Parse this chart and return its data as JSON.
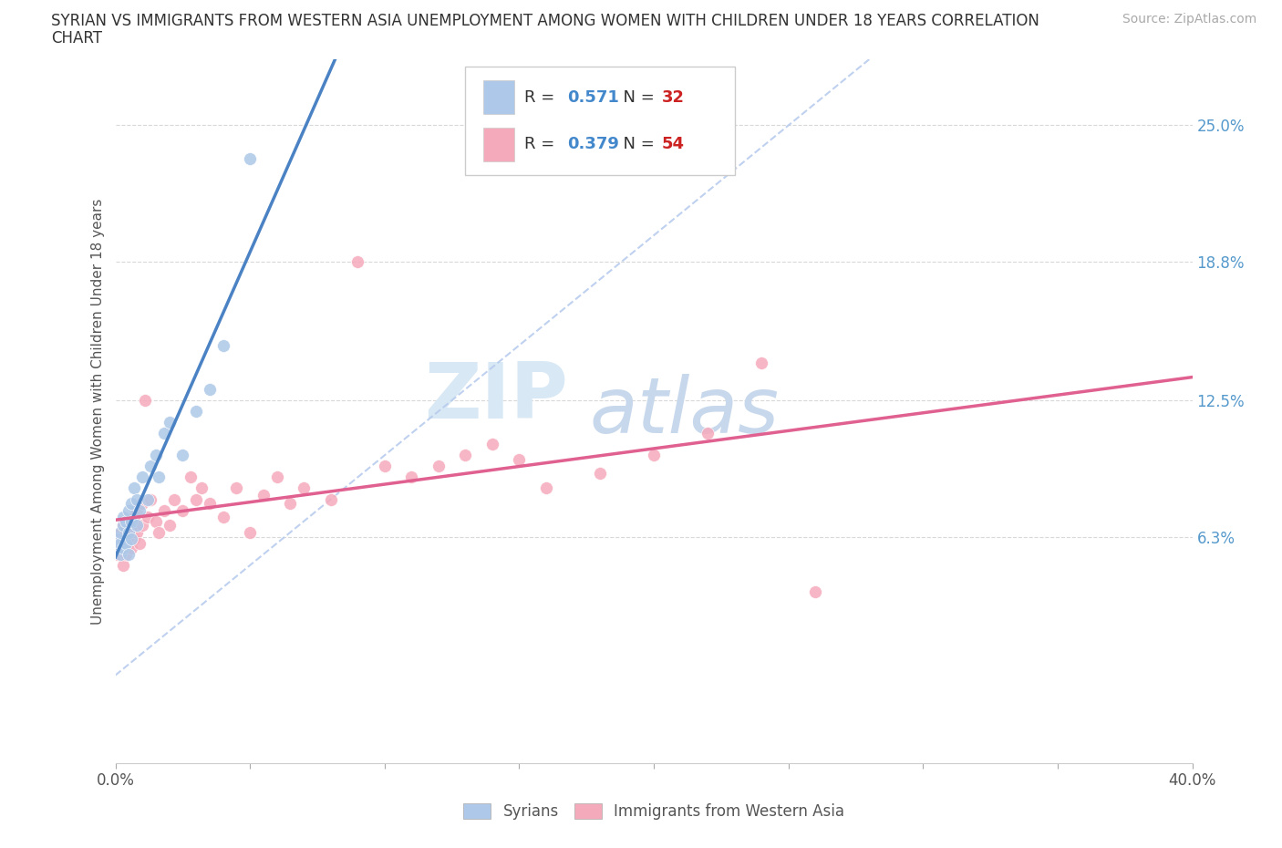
{
  "title_line1": "SYRIAN VS IMMIGRANTS FROM WESTERN ASIA UNEMPLOYMENT AMONG WOMEN WITH CHILDREN UNDER 18 YEARS CORRELATION",
  "title_line2": "CHART",
  "source": "Source: ZipAtlas.com",
  "ylabel": "Unemployment Among Women with Children Under 18 years",
  "xlim": [
    0.0,
    0.4
  ],
  "ylim": [
    -0.04,
    0.28
  ],
  "xticks": [
    0.0,
    0.05,
    0.1,
    0.15,
    0.2,
    0.25,
    0.3,
    0.35,
    0.4
  ],
  "ytick_right": [
    0.063,
    0.125,
    0.188,
    0.25
  ],
  "ytick_right_labels": [
    "6.3%",
    "12.5%",
    "18.8%",
    "25.0%"
  ],
  "R_syrian": 0.571,
  "N_syrian": 32,
  "R_western": 0.379,
  "N_western": 54,
  "syrian_color": "#adc8e8",
  "western_color": "#f5aabb",
  "syrian_line_color": "#4a82c4",
  "western_line_color": "#e06090",
  "diagonal_color": "#b8ccee",
  "grid_color": "#d8d8d8",
  "background_color": "#ffffff",
  "syrian_x": [
    0.001,
    0.001,
    0.002,
    0.002,
    0.002,
    0.003,
    0.003,
    0.003,
    0.004,
    0.004,
    0.005,
    0.005,
    0.005,
    0.006,
    0.006,
    0.006,
    0.007,
    0.008,
    0.008,
    0.009,
    0.01,
    0.012,
    0.013,
    0.015,
    0.016,
    0.018,
    0.02,
    0.025,
    0.03,
    0.035,
    0.04,
    0.05
  ],
  "syrian_y": [
    0.058,
    0.062,
    0.055,
    0.06,
    0.065,
    0.058,
    0.068,
    0.072,
    0.06,
    0.07,
    0.055,
    0.065,
    0.075,
    0.062,
    0.07,
    0.078,
    0.085,
    0.068,
    0.08,
    0.075,
    0.09,
    0.08,
    0.095,
    0.1,
    0.09,
    0.11,
    0.115,
    0.1,
    0.12,
    0.13,
    0.15,
    0.235
  ],
  "western_x": [
    0.001,
    0.001,
    0.002,
    0.002,
    0.003,
    0.003,
    0.003,
    0.004,
    0.004,
    0.005,
    0.005,
    0.006,
    0.006,
    0.007,
    0.007,
    0.008,
    0.008,
    0.009,
    0.01,
    0.01,
    0.011,
    0.012,
    0.013,
    0.015,
    0.016,
    0.018,
    0.02,
    0.022,
    0.025,
    0.028,
    0.03,
    0.032,
    0.035,
    0.04,
    0.045,
    0.05,
    0.055,
    0.06,
    0.065,
    0.07,
    0.08,
    0.09,
    0.1,
    0.11,
    0.12,
    0.13,
    0.14,
    0.15,
    0.16,
    0.18,
    0.2,
    0.22,
    0.24,
    0.26
  ],
  "western_y": [
    0.055,
    0.06,
    0.058,
    0.065,
    0.05,
    0.06,
    0.068,
    0.055,
    0.065,
    0.06,
    0.07,
    0.058,
    0.068,
    0.062,
    0.072,
    0.065,
    0.075,
    0.06,
    0.068,
    0.078,
    0.125,
    0.072,
    0.08,
    0.07,
    0.065,
    0.075,
    0.068,
    0.08,
    0.075,
    0.09,
    0.08,
    0.085,
    0.078,
    0.072,
    0.085,
    0.065,
    0.082,
    0.09,
    0.078,
    0.085,
    0.08,
    0.188,
    0.095,
    0.09,
    0.095,
    0.1,
    0.105,
    0.098,
    0.085,
    0.092,
    0.1,
    0.11,
    0.142,
    0.038
  ],
  "watermark_zip": "ZIP",
  "watermark_atlas": "atlas"
}
